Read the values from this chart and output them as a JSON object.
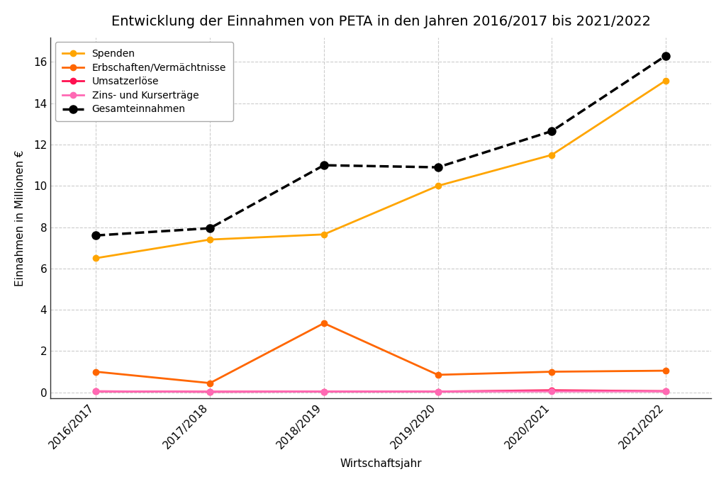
{
  "title": "Entwicklung der Einnahmen von PETA in den Jahren 2016/2017 bis 2021/2022",
  "xlabel": "Wirtschaftsjahr",
  "ylabel": "Einnahmen in Millionen €",
  "years": [
    "2016/2017",
    "2017/2018",
    "2018/2019",
    "2019/2020",
    "2020/2021",
    "2021/2022"
  ],
  "spenden": [
    6.5,
    7.4,
    7.65,
    10.0,
    11.5,
    15.1
  ],
  "erbschaften": [
    1.0,
    0.45,
    3.35,
    0.85,
    1.0,
    1.05
  ],
  "umsatzerloese": [
    0.05,
    0.03,
    0.04,
    0.04,
    0.1,
    0.06
  ],
  "zins_kursertraege": [
    0.05,
    0.03,
    0.04,
    0.04,
    0.05,
    0.05
  ],
  "gesamteinnahmen": [
    7.6,
    7.95,
    11.0,
    10.9,
    12.65,
    16.3
  ],
  "color_spenden": "#FFA500",
  "color_erbschaften": "#FF6600",
  "color_umsatzerloese": "#FF1050",
  "color_zins": "#FF69B4",
  "color_gesamt": "#000000",
  "legend_spenden": "Spenden",
  "legend_erbschaften": "Erbschaften/Vermächtnisse",
  "legend_umsatzerloese": "Umsatzerlöse",
  "legend_zins": "Zins- und Kurserträge",
  "legend_gesamt": "Gesamteinnahmen",
  "ylim": [
    -0.3,
    17.2
  ],
  "yticks": [
    0,
    2,
    4,
    6,
    8,
    10,
    12,
    14,
    16
  ],
  "title_fontsize": 14,
  "label_fontsize": 11,
  "tick_fontsize": 11,
  "legend_fontsize": 10,
  "background_color": "#ffffff",
  "grid_color": "#cccccc"
}
